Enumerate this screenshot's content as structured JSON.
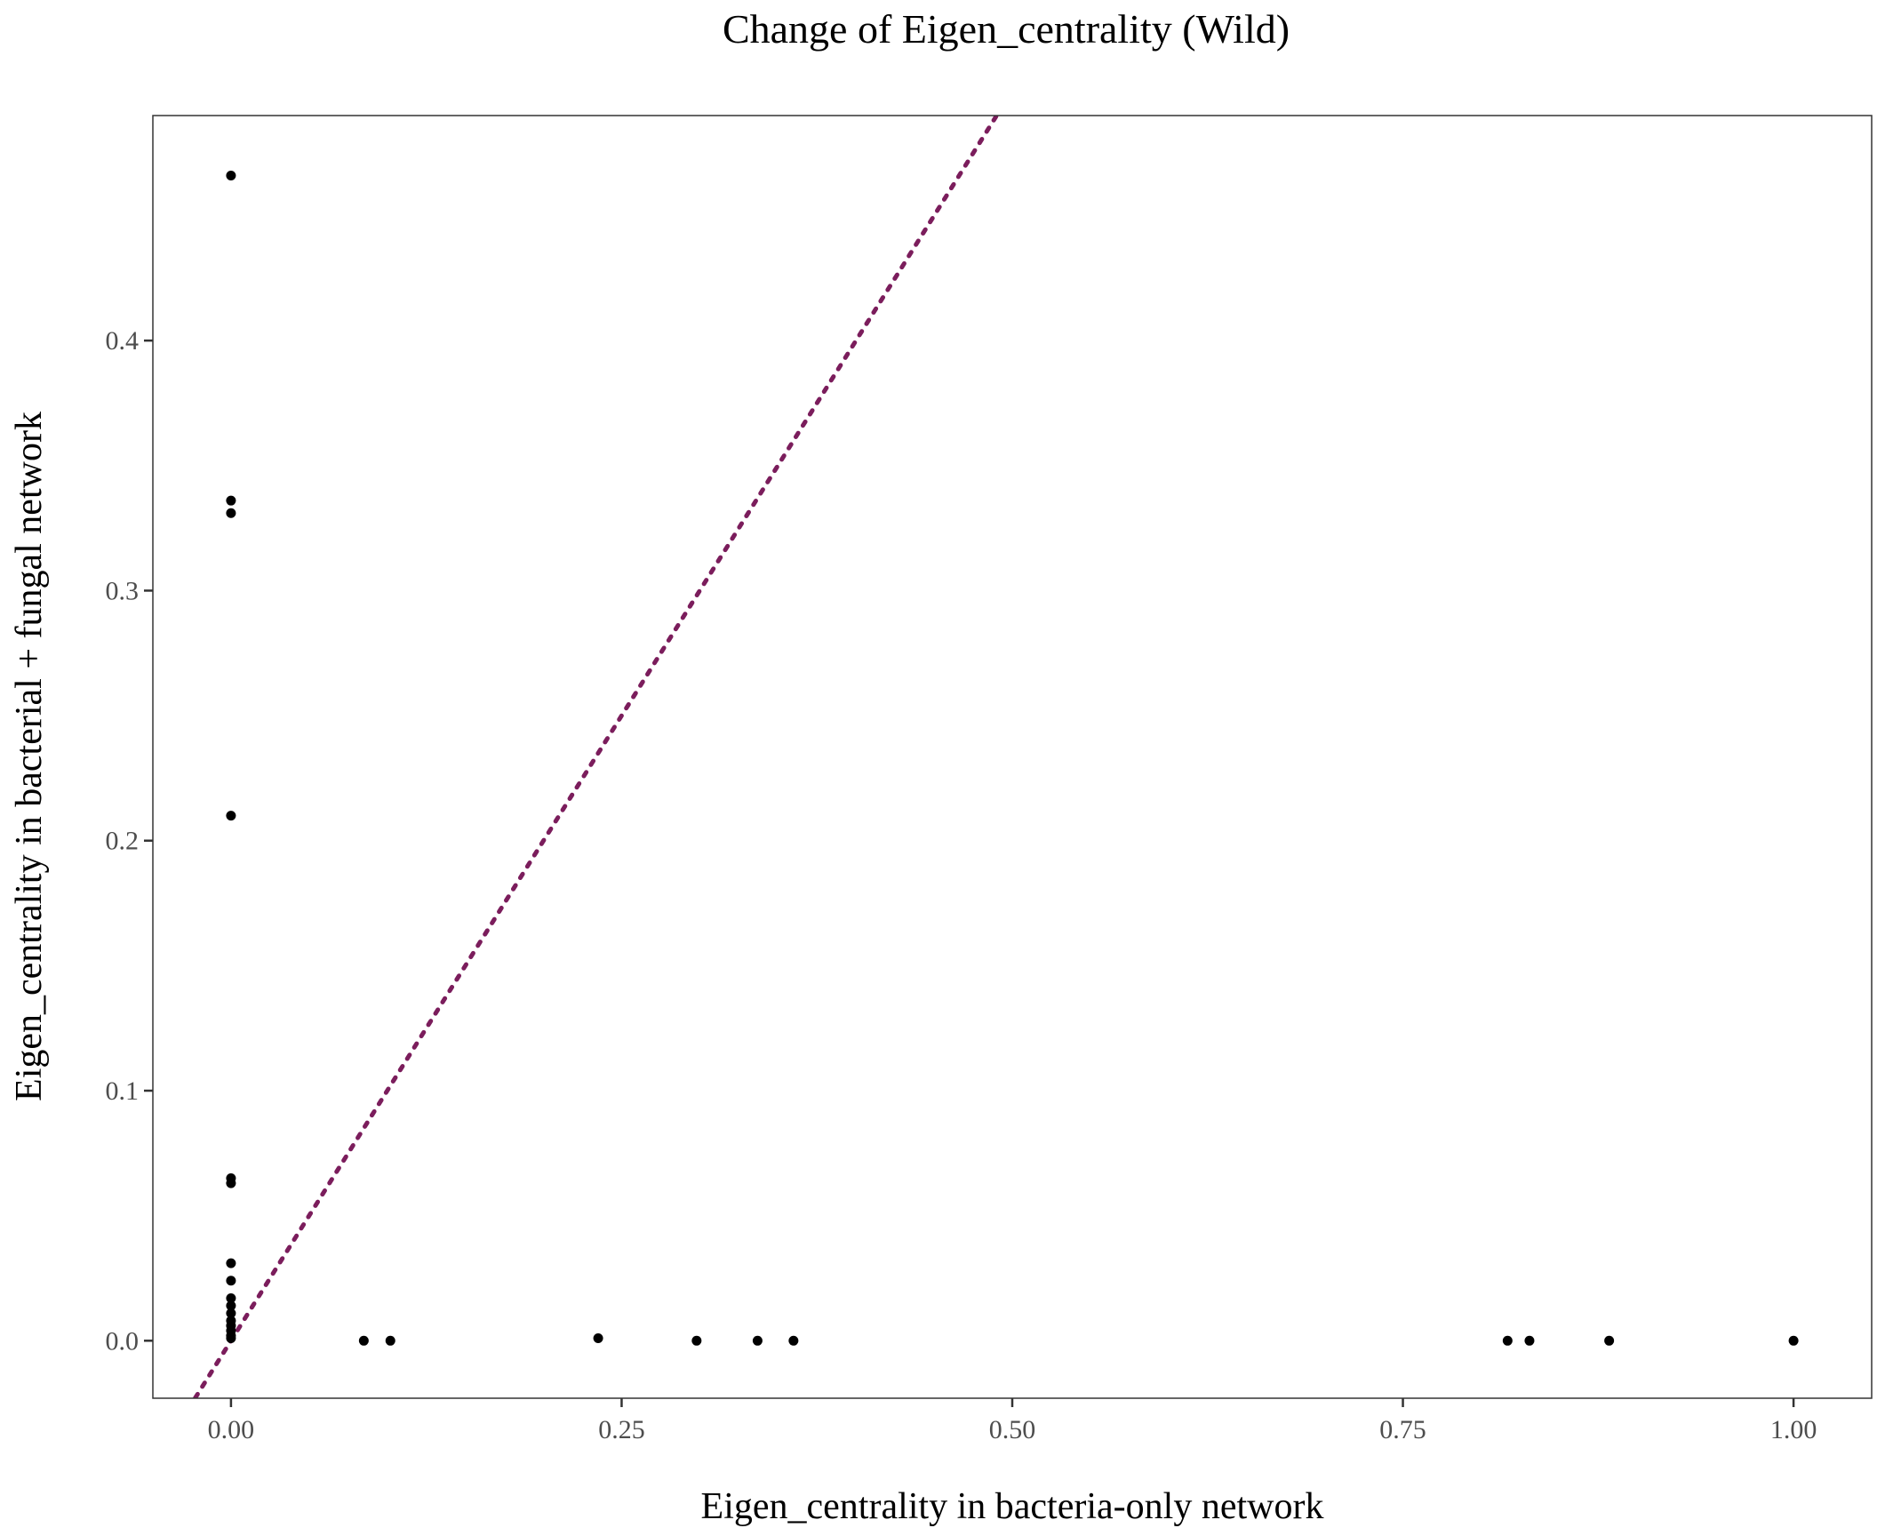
{
  "chart_data": {
    "type": "scatter",
    "title": "Change of Eigen_centrality (Wild)",
    "xlabel": "Eigen_centrality in bacteria-only network",
    "ylabel": "Eigen_centrality in bacterial + fungal network",
    "xlim": [
      -0.05,
      1.05
    ],
    "ylim": [
      -0.023,
      0.49
    ],
    "x_ticks": [
      0.0,
      0.25,
      0.5,
      0.75,
      1.0
    ],
    "x_tick_labels": [
      "0.00",
      "0.25",
      "0.50",
      "0.75",
      "1.00"
    ],
    "y_ticks": [
      0.0,
      0.1,
      0.2,
      0.3,
      0.4
    ],
    "y_tick_labels": [
      "0.0",
      "0.1",
      "0.2",
      "0.3",
      "0.4"
    ],
    "grid": false,
    "reference_line": {
      "slope": 1,
      "intercept": 0,
      "style": "dotted",
      "color": "#7b1d5c"
    },
    "point_color": "#000000",
    "points": [
      {
        "x": 0.0,
        "y": 0.466
      },
      {
        "x": 0.0,
        "y": 0.336
      },
      {
        "x": 0.0,
        "y": 0.331
      },
      {
        "x": 0.0,
        "y": 0.21
      },
      {
        "x": 0.0,
        "y": 0.065
      },
      {
        "x": 0.0,
        "y": 0.063
      },
      {
        "x": 0.0,
        "y": 0.031
      },
      {
        "x": 0.0,
        "y": 0.024
      },
      {
        "x": 0.0,
        "y": 0.017
      },
      {
        "x": 0.0,
        "y": 0.014
      },
      {
        "x": 0.0,
        "y": 0.011
      },
      {
        "x": 0.0,
        "y": 0.008
      },
      {
        "x": 0.0,
        "y": 0.006
      },
      {
        "x": 0.0,
        "y": 0.004
      },
      {
        "x": 0.0,
        "y": 0.002
      },
      {
        "x": 0.0,
        "y": 0.001
      },
      {
        "x": 0.085,
        "y": 0.0
      },
      {
        "x": 0.102,
        "y": 0.0
      },
      {
        "x": 0.235,
        "y": 0.001
      },
      {
        "x": 0.298,
        "y": 0.0
      },
      {
        "x": 0.337,
        "y": 0.0
      },
      {
        "x": 0.36,
        "y": 0.0
      },
      {
        "x": 0.817,
        "y": 0.0
      },
      {
        "x": 0.831,
        "y": 0.0
      },
      {
        "x": 0.882,
        "y": 0.0
      },
      {
        "x": 1.0,
        "y": 0.0
      }
    ]
  }
}
